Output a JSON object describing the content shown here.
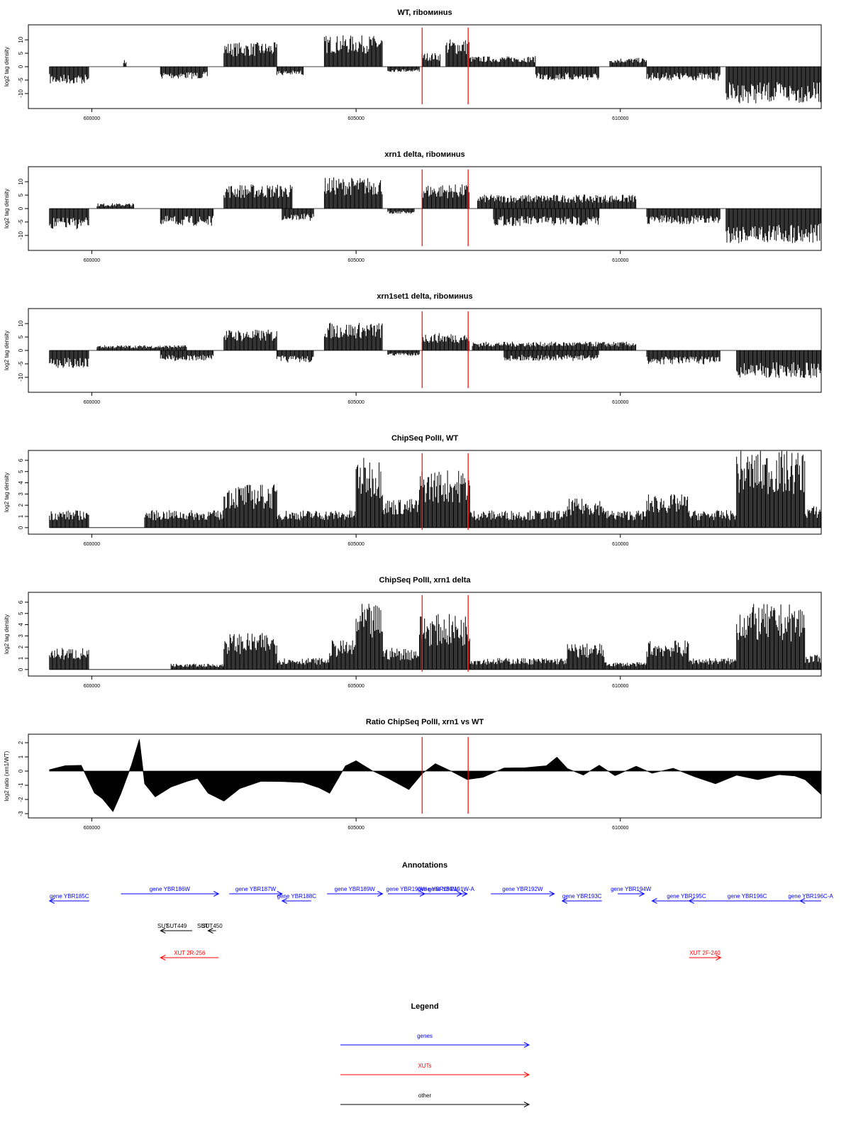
{
  "red_lines_x": [
    606250,
    607120
  ],
  "colors": {
    "bars": "#000000",
    "marker": "#ff0000",
    "gene": "#0000ff",
    "xut": "#ff0000",
    "other": "#000000"
  },
  "chart_data": [
    {
      "type": "bar",
      "title": "WT, riboминus",
      "ylabel": "log2 tag density",
      "xlim": [
        598800,
        613800
      ],
      "ylim": [
        -14,
        14
      ],
      "yticks": [
        -10,
        -5,
        0,
        5,
        10
      ],
      "ytick_labels": [
        "-10",
        "-5",
        "0",
        "5",
        "10"
      ],
      "xticks": [
        600000,
        605000,
        610000
      ],
      "xtick_labels": [
        "600000",
        "605000",
        "610000"
      ],
      "segments": [
        {
          "x0": 599200,
          "x1": 599950,
          "v": -5
        },
        {
          "x0": 600600,
          "x1": 600650,
          "v": 2
        },
        {
          "x0": 601300,
          "x1": 602200,
          "v": -3.5
        },
        {
          "x0": 602500,
          "x1": 603500,
          "v": 7
        },
        {
          "x0": 603500,
          "x1": 604000,
          "v": -2.5
        },
        {
          "x0": 604400,
          "x1": 605500,
          "v": 9
        },
        {
          "x0": 605600,
          "x1": 606200,
          "v": -1.5
        },
        {
          "x0": 606250,
          "x1": 606600,
          "v": 4
        },
        {
          "x0": 606700,
          "x1": 607150,
          "v": 8
        },
        {
          "x0": 607150,
          "x1": 608400,
          "v": 3
        },
        {
          "x0": 608400,
          "x1": 609600,
          "v": -4
        },
        {
          "x0": 609800,
          "x1": 610500,
          "v": 2.5
        },
        {
          "x0": 610500,
          "x1": 611900,
          "v": -4
        },
        {
          "x0": 612000,
          "x1": 613800,
          "v": -10.5
        }
      ]
    },
    {
      "type": "bar",
      "title": "xrn1 delta, riboминus",
      "ylabel": "log2 tag density",
      "xlim": [
        598800,
        613800
      ],
      "ylim": [
        -14,
        14
      ],
      "yticks": [
        -10,
        -5,
        0,
        5,
        10
      ],
      "ytick_labels": [
        "-10",
        "-5",
        "0",
        "5",
        "10"
      ],
      "xticks": [
        600000,
        605000,
        610000
      ],
      "xtick_labels": [
        "600000",
        "605000",
        "610000"
      ],
      "segments": [
        {
          "x0": 599200,
          "x1": 599950,
          "v": -6
        },
        {
          "x0": 600100,
          "x1": 600800,
          "v": 1.5
        },
        {
          "x0": 601300,
          "x1": 602300,
          "v": -5
        },
        {
          "x0": 602500,
          "x1": 603800,
          "v": 7
        },
        {
          "x0": 603600,
          "x1": 604200,
          "v": -3.5
        },
        {
          "x0": 604400,
          "x1": 605500,
          "v": 9
        },
        {
          "x0": 605600,
          "x1": 606100,
          "v": -1.5
        },
        {
          "x0": 606250,
          "x1": 607150,
          "v": 7
        },
        {
          "x0": 607300,
          "x1": 610300,
          "v": 4
        },
        {
          "x0": 607600,
          "x1": 609600,
          "v": -5
        },
        {
          "x0": 610500,
          "x1": 611900,
          "v": -4.5
        },
        {
          "x0": 612000,
          "x1": 613800,
          "v": -10
        }
      ]
    },
    {
      "type": "bar",
      "title": "xrn1set1 delta, riboминus",
      "ylabel": "log2 tag density",
      "xlim": [
        598800,
        613800
      ],
      "ylim": [
        -14,
        14
      ],
      "yticks": [
        -10,
        -5,
        0,
        5,
        10
      ],
      "ytick_labels": [
        "-10",
        "-5",
        "0",
        "5",
        "10"
      ],
      "xticks": [
        600000,
        605000,
        610000
      ],
      "xtick_labels": [
        "600000",
        "605000",
        "610000"
      ],
      "segments": [
        {
          "x0": 599200,
          "x1": 599950,
          "v": -5
        },
        {
          "x0": 600100,
          "x1": 601800,
          "v": 1.5
        },
        {
          "x0": 601300,
          "x1": 602300,
          "v": -3
        },
        {
          "x0": 602500,
          "x1": 603500,
          "v": 6
        },
        {
          "x0": 603500,
          "x1": 604200,
          "v": -3.5
        },
        {
          "x0": 604400,
          "x1": 605500,
          "v": 8
        },
        {
          "x0": 605600,
          "x1": 606200,
          "v": -1.5
        },
        {
          "x0": 606250,
          "x1": 607150,
          "v": 5
        },
        {
          "x0": 607200,
          "x1": 610300,
          "v": 2.5
        },
        {
          "x0": 607800,
          "x1": 609600,
          "v": -3
        },
        {
          "x0": 610500,
          "x1": 611900,
          "v": -4
        },
        {
          "x0": 612200,
          "x1": 613800,
          "v": -8
        }
      ]
    },
    {
      "type": "bar",
      "title": "ChipSeq PolII, WT",
      "ylabel": "log2 tag density",
      "xlim": [
        598800,
        613800
      ],
      "ylim": [
        -0.2,
        6.5
      ],
      "yticks": [
        0,
        1,
        2,
        3,
        4,
        5,
        6
      ],
      "ytick_labels": [
        "0",
        "1",
        "2",
        "3",
        "4",
        "5",
        "6"
      ],
      "xticks": [
        600000,
        605000,
        610000
      ],
      "xtick_labels": [
        "600000",
        "605000",
        "610000"
      ],
      "segments": [
        {
          "x0": 599200,
          "x1": 599950,
          "v": 1.2
        },
        {
          "x0": 600000,
          "x1": 601000,
          "v": 0
        },
        {
          "x0": 601000,
          "x1": 602500,
          "v": 1.2
        },
        {
          "x0": 602500,
          "x1": 603500,
          "v": 3
        },
        {
          "x0": 603500,
          "x1": 605000,
          "v": 1.2
        },
        {
          "x0": 605000,
          "x1": 605500,
          "v": 4.8
        },
        {
          "x0": 605500,
          "x1": 606200,
          "v": 2
        },
        {
          "x0": 606200,
          "x1": 607150,
          "v": 4
        },
        {
          "x0": 607150,
          "x1": 609000,
          "v": 1.2
        },
        {
          "x0": 609000,
          "x1": 609700,
          "v": 2
        },
        {
          "x0": 609700,
          "x1": 610500,
          "v": 1.2
        },
        {
          "x0": 610500,
          "x1": 611300,
          "v": 2.3
        },
        {
          "x0": 611300,
          "x1": 612200,
          "v": 1.2
        },
        {
          "x0": 612200,
          "x1": 613500,
          "v": 5.3
        },
        {
          "x0": 613500,
          "x1": 613800,
          "v": 1.5
        }
      ]
    },
    {
      "type": "bar",
      "title": "ChipSeq PolII, xrn1 delta",
      "ylabel": "log2 tag density",
      "xlim": [
        598800,
        613800
      ],
      "ylim": [
        -0.2,
        6.5
      ],
      "yticks": [
        0,
        1,
        2,
        3,
        4,
        5,
        6
      ],
      "ytick_labels": [
        "0",
        "1",
        "2",
        "3",
        "4",
        "5",
        "6"
      ],
      "xticks": [
        600000,
        605000,
        610000
      ],
      "xtick_labels": [
        "600000",
        "605000",
        "610000"
      ],
      "segments": [
        {
          "x0": 599200,
          "x1": 599950,
          "v": 1.5
        },
        {
          "x0": 600000,
          "x1": 601500,
          "v": 0
        },
        {
          "x0": 601500,
          "x1": 602500,
          "v": 0.4
        },
        {
          "x0": 602500,
          "x1": 603500,
          "v": 2.5
        },
        {
          "x0": 603500,
          "x1": 604500,
          "v": 0.8
        },
        {
          "x0": 604500,
          "x1": 605000,
          "v": 2
        },
        {
          "x0": 605000,
          "x1": 605500,
          "v": 4.5
        },
        {
          "x0": 605500,
          "x1": 606200,
          "v": 1.5
        },
        {
          "x0": 606200,
          "x1": 607150,
          "v": 3.8
        },
        {
          "x0": 607150,
          "x1": 609000,
          "v": 0.8
        },
        {
          "x0": 609000,
          "x1": 609700,
          "v": 1.8
        },
        {
          "x0": 609700,
          "x1": 610500,
          "v": 0.5
        },
        {
          "x0": 610500,
          "x1": 611300,
          "v": 2
        },
        {
          "x0": 611300,
          "x1": 612200,
          "v": 0.8
        },
        {
          "x0": 612200,
          "x1": 613500,
          "v": 4.5
        },
        {
          "x0": 613500,
          "x1": 613800,
          "v": 1
        }
      ]
    },
    {
      "type": "area",
      "title": "Ratio ChipSeq PolII, xrn1 vs WT",
      "ylabel": "log2 ratio (xrn1/WT)",
      "xlim": [
        598800,
        613800
      ],
      "ylim": [
        -3,
        2.3
      ],
      "yticks": [
        -3,
        -2,
        -1,
        0,
        1,
        2
      ],
      "ytick_labels": [
        "-3",
        "-2",
        "-1",
        "0",
        "1",
        "2"
      ],
      "xticks": [
        600000,
        605000,
        610000
      ],
      "xtick_labels": [
        "600000",
        "605000",
        "610000"
      ],
      "x": [
        599200,
        599500,
        599800,
        600050,
        600200,
        600400,
        600550,
        600750,
        600900,
        601000,
        601200,
        601500,
        601800,
        602000,
        602200,
        602500,
        602800,
        603200,
        603600,
        604000,
        604300,
        604500,
        604800,
        605000,
        605300,
        605600,
        606000,
        606250,
        606500,
        606800,
        607100,
        607400,
        607800,
        608200,
        608600,
        608800,
        609000,
        609300,
        609600,
        609900,
        610300,
        610600,
        611000,
        611400,
        611800,
        612200,
        612600,
        613000,
        613300,
        613500,
        613800
      ],
      "y": [
        0.2,
        0.5,
        0.3,
        -1.5,
        -2,
        -2.8,
        -1.5,
        0.5,
        2.2,
        -1,
        -1.7,
        -1,
        -0.8,
        -0.5,
        -1.6,
        -2,
        -1.2,
        -0.6,
        -0.8,
        -0.9,
        -1.2,
        -1.6,
        0.4,
        0.6,
        0.1,
        -0.5,
        -1.2,
        -0.2,
        0.5,
        0.1,
        -0.7,
        -0.4,
        0.3,
        0.2,
        0.5,
        1.1,
        0.2,
        -0.4,
        0.5,
        -0.4,
        0.3,
        -0.1,
        0.1,
        -0.5,
        -1,
        -0.4,
        -0.5,
        -0.3,
        -0.4,
        -0.5,
        -1.6
      ]
    }
  ],
  "annotations": {
    "title": "Annotations",
    "genes": [
      {
        "label": "gene YBR185C",
        "x0": 599950,
        "x1": 599200,
        "row": 0
      },
      {
        "label": "gene YBR186W",
        "x0": 600550,
        "x1": 602400,
        "row": -1
      },
      {
        "label": "gene YBR187W",
        "x0": 602600,
        "x1": 603600,
        "row": -1
      },
      {
        "label": "gene YBR188C",
        "x0": 604150,
        "x1": 603600,
        "row": 0
      },
      {
        "label": "gene YBR189W",
        "x0": 604450,
        "x1": 605500,
        "row": -1
      },
      {
        "label": "gene YBR190W",
        "x0": 605600,
        "x1": 606300,
        "row": -1
      },
      {
        "label": "gene YBR191W",
        "x0": 606100,
        "x1": 607000,
        "row": -1
      },
      {
        "label": "gene YBR191W-A",
        "x0": 606500,
        "x1": 607100,
        "row": -1
      },
      {
        "label": "gene YBR192W",
        "x0": 607550,
        "x1": 608750,
        "row": -1
      },
      {
        "label": "gene YBR193C",
        "x0": 609650,
        "x1": 608900,
        "row": 0
      },
      {
        "label": "gene YBR194W",
        "x0": 609950,
        "x1": 610450,
        "row": -1
      },
      {
        "label": "gene YBR195C",
        "x0": 611900,
        "x1": 610600,
        "row": 0
      },
      {
        "label": "gene YBR196C",
        "x0": 613500,
        "x1": 611300,
        "row": 0
      },
      {
        "label": "gene YBR196C-A",
        "x0": 613800,
        "x1": 613400,
        "row": 0
      }
    ],
    "other": [
      {
        "label": "SUT",
        "x0": 601350,
        "x1": 601350,
        "row": 1
      },
      {
        "label": "SUT449",
        "x0": 601900,
        "x1": 601300,
        "row": 1
      },
      {
        "label": "SUT",
        "x0": 602100,
        "x1": 602100,
        "row": 1
      },
      {
        "label": "SUT450",
        "x0": 602350,
        "x1": 602200,
        "row": 1
      }
    ],
    "xuts": [
      {
        "label": "XUT 2R-256",
        "x0": 602400,
        "x1": 601300,
        "row": 2
      },
      {
        "label": "XUT 2F-240",
        "x0": 611300,
        "x1": 611900,
        "row": 2
      }
    ]
  },
  "legend": {
    "title": "Legend",
    "items": [
      {
        "label": "genes",
        "color": "#0000ff"
      },
      {
        "label": "XUTs",
        "color": "#ff0000"
      },
      {
        "label": "other",
        "color": "#000000"
      }
    ]
  }
}
